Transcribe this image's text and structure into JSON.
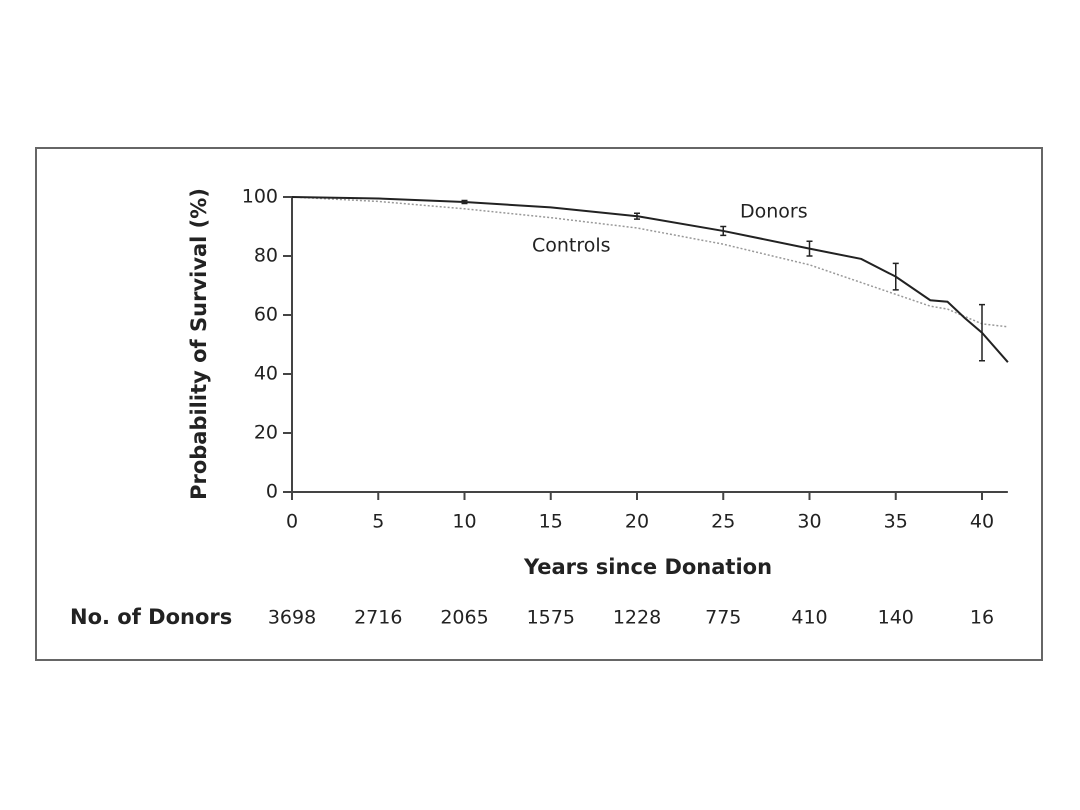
{
  "chart_data": {
    "type": "line",
    "xlabel": "Years since  Donation",
    "ylabel": "Probability of Survival (%)",
    "xlim": [
      0,
      41.5
    ],
    "ylim": [
      0,
      100
    ],
    "xticks": [
      0,
      5,
      10,
      15,
      20,
      25,
      30,
      35,
      40
    ],
    "yticks": [
      0,
      20,
      40,
      60,
      80,
      100
    ],
    "series": [
      {
        "name": "Donors",
        "color": "#222222",
        "style": "solid",
        "x": [
          0,
          5,
          10,
          15,
          20,
          25,
          30,
          33,
          35,
          37,
          38,
          39,
          40,
          41.5
        ],
        "values": [
          100,
          99.5,
          98.3,
          96.5,
          93.5,
          88.5,
          82.5,
          79,
          73,
          65,
          64.5,
          59,
          54,
          44
        ]
      },
      {
        "name": "Controls",
        "color": "#999999",
        "style": "dotted",
        "x": [
          0,
          5,
          10,
          15,
          20,
          25,
          30,
          35,
          37,
          38,
          40,
          41.5
        ],
        "values": [
          100,
          98.5,
          96,
          93,
          89.5,
          84,
          77,
          67,
          63,
          62,
          57,
          56
        ]
      }
    ],
    "error_bars": {
      "x": [
        10,
        20,
        25,
        30,
        35,
        40
      ],
      "values": [
        98.3,
        93.5,
        88.5,
        82.5,
        73,
        54
      ],
      "errors": [
        0.5,
        1,
        1.5,
        2.5,
        4.5,
        9.5
      ]
    },
    "risk_table": {
      "label": "No. of Donors",
      "values": [
        3698,
        2716,
        2065,
        1575,
        1228,
        775,
        410,
        140,
        16
      ]
    }
  }
}
